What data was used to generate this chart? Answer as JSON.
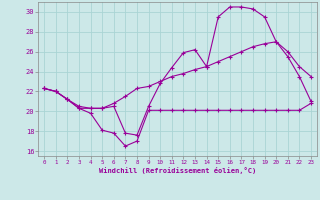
{
  "xlabel": "Windchill (Refroidissement éolien,°C)",
  "background_color": "#cce8e8",
  "grid_color": "#aad4d4",
  "line_color": "#990099",
  "spine_color": "#888888",
  "x_ticks": [
    0,
    1,
    2,
    3,
    4,
    5,
    6,
    7,
    8,
    9,
    10,
    11,
    12,
    13,
    14,
    15,
    16,
    17,
    18,
    19,
    20,
    21,
    22,
    23
  ],
  "xlim": [
    -0.5,
    23.5
  ],
  "ylim": [
    15.5,
    31.0
  ],
  "y_ticks": [
    16,
    18,
    20,
    22,
    24,
    26,
    28,
    30
  ],
  "series1_x": [
    0,
    1,
    2,
    3,
    4,
    5,
    6,
    7,
    8,
    9,
    10,
    11,
    12,
    13,
    14,
    15,
    16,
    17,
    18,
    19,
    20,
    21,
    22,
    23
  ],
  "series1_y": [
    22.3,
    22.0,
    21.2,
    20.3,
    19.8,
    18.1,
    17.8,
    16.5,
    17.0,
    20.1,
    20.1,
    20.1,
    20.1,
    20.1,
    20.1,
    20.1,
    20.1,
    20.1,
    20.1,
    20.1,
    20.1,
    20.1,
    20.1,
    20.8
  ],
  "series2_x": [
    0,
    1,
    2,
    3,
    4,
    5,
    6,
    7,
    8,
    9,
    10,
    11,
    12,
    13,
    14,
    15,
    16,
    17,
    18,
    19,
    20,
    21,
    22,
    23
  ],
  "series2_y": [
    22.3,
    22.0,
    21.2,
    20.3,
    20.3,
    20.3,
    20.8,
    21.5,
    22.3,
    22.5,
    23.0,
    23.5,
    23.8,
    24.2,
    24.5,
    25.0,
    25.5,
    26.0,
    26.5,
    26.8,
    27.0,
    26.0,
    24.5,
    23.5
  ],
  "series3_x": [
    0,
    1,
    2,
    3,
    4,
    5,
    6,
    7,
    8,
    9,
    10,
    11,
    12,
    13,
    14,
    15,
    16,
    17,
    18,
    19,
    20,
    21,
    22,
    23
  ],
  "series3_y": [
    22.3,
    22.0,
    21.2,
    20.5,
    20.3,
    20.3,
    20.5,
    17.8,
    17.6,
    20.5,
    22.8,
    24.4,
    25.9,
    26.2,
    24.5,
    29.5,
    30.5,
    30.5,
    30.3,
    29.5,
    27.0,
    25.5,
    23.5,
    21.0
  ]
}
